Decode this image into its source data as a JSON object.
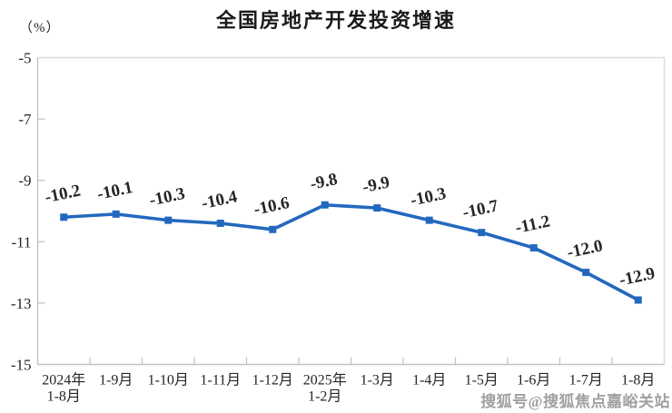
{
  "watermark": {
    "text": "搜狐号@搜狐焦点嘉峪关站"
  },
  "chart_data": {
    "type": "line",
    "title": "全国房地产开发投资增速",
    "unit_label": "（%）",
    "categories": [
      [
        "2024年",
        "1-8月"
      ],
      [
        "1-9月"
      ],
      [
        "1-10月"
      ],
      [
        "1-11月"
      ],
      [
        "1-12月"
      ],
      [
        "2025年",
        "1-2月"
      ],
      [
        "1-3月"
      ],
      [
        "1-4月"
      ],
      [
        "1-5月"
      ],
      [
        "1-6月"
      ],
      [
        "1-7月"
      ],
      [
        "1-8月"
      ]
    ],
    "series": [
      {
        "name": "全国房地产开发投资增速",
        "values": [
          -10.2,
          -10.1,
          -10.3,
          -10.4,
          -10.6,
          -9.8,
          -9.9,
          -10.3,
          -10.7,
          -11.2,
          -12.0,
          -12.9
        ],
        "data_labels": [
          "-10.2",
          "-10.1",
          "-10.3",
          "-10.4",
          "-10.6",
          "-9.8",
          "-9.9",
          "-10.3",
          "-10.7",
          "-11.2",
          "-12.0",
          "-12.9"
        ]
      }
    ],
    "ylim": [
      -15,
      -5
    ],
    "yticks": [
      "-5",
      "-7",
      "-9",
      "-11",
      "-13",
      "-15"
    ],
    "ytick_interval": 2,
    "grid": false,
    "legend": "none",
    "marker": "square",
    "line_color": "#2368BE",
    "text_color": "#262626",
    "axis_color": "#c2c2c2",
    "border_color": "#dcdcdc"
  }
}
